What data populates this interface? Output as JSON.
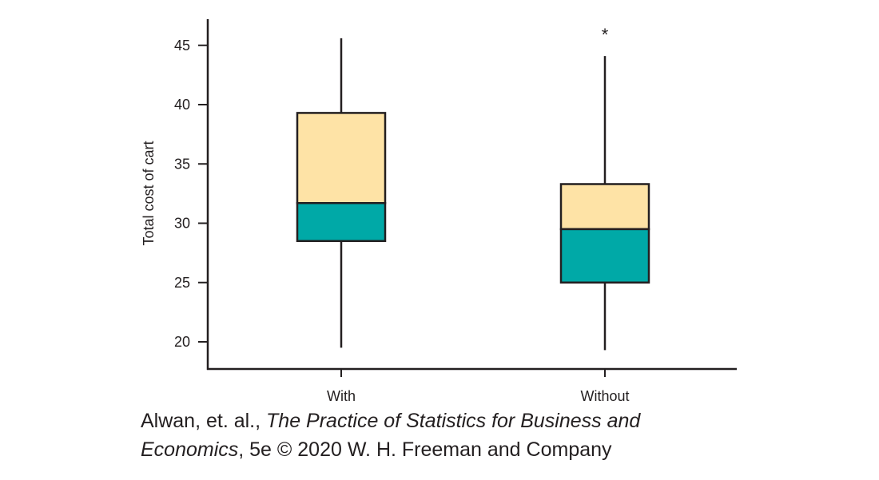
{
  "chart_data": {
    "type": "boxplot",
    "ylabel": "Total cost of cart",
    "ylim": [
      17.5,
      47
    ],
    "yticks": [
      20,
      25,
      30,
      35,
      40,
      45
    ],
    "categories": [
      "With",
      "Without"
    ],
    "boxes": [
      {
        "category": "With",
        "whisker_low": 19.5,
        "q1": 28.5,
        "median": 31.7,
        "q3": 39.3,
        "whisker_high": 45.6,
        "outliers": []
      },
      {
        "category": "Without",
        "whisker_low": 19.3,
        "q1": 25.0,
        "median": 29.5,
        "q3": 33.3,
        "whisker_high": 44.1,
        "outliers": [
          46.2
        ]
      }
    ],
    "colors": {
      "upper_box": "#fee3a6",
      "lower_box": "#00a9a7",
      "line": "#231f20"
    },
    "outlier_symbol": "*"
  },
  "caption": {
    "authors": "Alwan, et. al., ",
    "title_line1": "The Practice of Statistics for Business and",
    "title_line2": "Economics",
    "rest": ", 5e © 2020 W. H. Freeman and Company"
  }
}
